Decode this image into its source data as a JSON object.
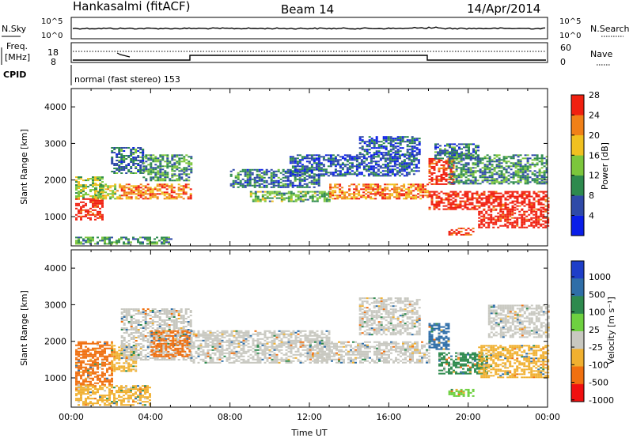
{
  "header": {
    "station": "Hankasalmi (fitACF)",
    "beam": "Beam 14",
    "date": "14/Apr/2014"
  },
  "top_panels": {
    "nsky_label": "N.Sky",
    "nsky_ticks": [
      "10^5",
      "10^0"
    ],
    "nsearch_label": "N.Search",
    "nsearch_ticks": [
      "10^5",
      "10^0"
    ],
    "freq_label_1": "Freq.",
    "freq_label_2": "[MHz]",
    "freq_ticks": [
      "18",
      "8"
    ],
    "nave_label": "Nave",
    "nave_ticks": [
      "60",
      "0"
    ],
    "cpid_label": "CPID",
    "cpid_text": "normal (fast stereo) 153"
  },
  "chart_data": [
    {
      "type": "heatmap",
      "title": "",
      "xlabel": "",
      "ylabel": "Slant Range [km]",
      "xlim": [
        0,
        24
      ],
      "ylim": [
        200,
        4500
      ],
      "yticks": [
        1000,
        2000,
        3000,
        4000
      ],
      "colorbar": {
        "label": "Power [dB]",
        "ticks": [
          "4",
          "8",
          "12",
          "16",
          "20",
          "24",
          "28"
        ],
        "colors": [
          "#0a1ee8",
          "#2f4aa8",
          "#2e8a4e",
          "#7cc63c",
          "#f0c020",
          "#f08018",
          "#f02010"
        ]
      },
      "regions": [
        {
          "t0": 0.2,
          "t1": 1.6,
          "r0": 900,
          "r1": 1500,
          "level": 28
        },
        {
          "t0": 0.2,
          "t1": 1.6,
          "r0": 1500,
          "r1": 2100,
          "level": 14
        },
        {
          "t0": 1.2,
          "t1": 2.5,
          "r0": 1500,
          "r1": 1900,
          "level": 16
        },
        {
          "t0": 2.5,
          "t1": 6.0,
          "r0": 1500,
          "r1": 1900,
          "level": 22
        },
        {
          "t0": 2.0,
          "t1": 3.6,
          "r0": 2200,
          "r1": 2900,
          "level": 8
        },
        {
          "t0": 3.6,
          "t1": 6.0,
          "r0": 2000,
          "r1": 2700,
          "level": 10
        },
        {
          "t0": 0.2,
          "t1": 5.0,
          "r0": 250,
          "r1": 450,
          "level": 10
        },
        {
          "t0": 8.0,
          "t1": 12.5,
          "r0": 1800,
          "r1": 2300,
          "level": 8
        },
        {
          "t0": 9.0,
          "t1": 13.0,
          "r0": 1400,
          "r1": 1700,
          "level": 12
        },
        {
          "t0": 13.0,
          "t1": 18.0,
          "r0": 1500,
          "r1": 1900,
          "level": 22
        },
        {
          "t0": 11.0,
          "t1": 17.5,
          "r0": 2100,
          "r1": 2700,
          "level": 6
        },
        {
          "t0": 14.5,
          "t1": 17.5,
          "r0": 2700,
          "r1": 3200,
          "level": 6
        },
        {
          "t0": 18.0,
          "t1": 19.2,
          "r0": 1900,
          "r1": 2600,
          "level": 26
        },
        {
          "t0": 18.0,
          "t1": 24.0,
          "r0": 1200,
          "r1": 1700,
          "level": 28
        },
        {
          "t0": 20.5,
          "t1": 24.0,
          "r0": 700,
          "r1": 1200,
          "level": 28
        },
        {
          "t0": 19.0,
          "t1": 24.0,
          "r0": 1900,
          "r1": 2700,
          "level": 10
        },
        {
          "t0": 18.3,
          "t1": 20.5,
          "r0": 2600,
          "r1": 3000,
          "level": 8
        },
        {
          "t0": 19.0,
          "t1": 20.2,
          "r0": 500,
          "r1": 700,
          "level": 26
        }
      ]
    },
    {
      "type": "heatmap",
      "title": "",
      "xlabel": "Time UT",
      "ylabel": "Slant Range [km]",
      "xlim": [
        0,
        24
      ],
      "xticks": [
        "00:00",
        "04:00",
        "08:00",
        "12:00",
        "16:00",
        "20:00",
        "00:00"
      ],
      "ylim": [
        200,
        4500
      ],
      "yticks": [
        1000,
        2000,
        3000,
        4000
      ],
      "colorbar": {
        "label": "Velocity [m s⁻¹]",
        "ticks": [
          "1000",
          "500",
          "100",
          "25",
          "-25",
          "-100",
          "-500",
          "-1000"
        ],
        "colors": [
          "#1e3ec8",
          "#2f6ea8",
          "#2e8a4e",
          "#6ed040",
          "#c8c8c0",
          "#f0b030",
          "#f07010",
          "#f01010"
        ]
      },
      "regions": [
        {
          "t0": 0.2,
          "t1": 2.0,
          "r0": 800,
          "r1": 2000,
          "level": -500
        },
        {
          "t0": 2.0,
          "t1": 3.2,
          "r0": 1200,
          "r1": 1900,
          "level": -100
        },
        {
          "t0": 2.5,
          "t1": 6.0,
          "r0": 1500,
          "r1": 2900,
          "level": 0
        },
        {
          "t0": 4.0,
          "t1": 6.0,
          "r0": 1600,
          "r1": 2300,
          "level": -500
        },
        {
          "t0": 0.2,
          "t1": 4.0,
          "r0": 250,
          "r1": 800,
          "level": -100
        },
        {
          "t0": 6.0,
          "t1": 13.0,
          "r0": 1400,
          "r1": 2300,
          "level": 0
        },
        {
          "t0": 12.0,
          "t1": 18.0,
          "r0": 1400,
          "r1": 2000,
          "level": 0
        },
        {
          "t0": 14.5,
          "t1": 17.5,
          "r0": 2200,
          "r1": 3200,
          "level": 0
        },
        {
          "t0": 18.0,
          "t1": 19.0,
          "r0": 1800,
          "r1": 2500,
          "level": 500
        },
        {
          "t0": 18.5,
          "t1": 21.0,
          "r0": 1100,
          "r1": 1700,
          "level": 100
        },
        {
          "t0": 20.5,
          "t1": 24.0,
          "r0": 1000,
          "r1": 1900,
          "level": -100
        },
        {
          "t0": 21.0,
          "t1": 24.0,
          "r0": 2100,
          "r1": 3000,
          "level": 0
        },
        {
          "t0": 19.0,
          "t1": 20.2,
          "r0": 500,
          "r1": 700,
          "level": 25
        }
      ]
    }
  ],
  "colors": {
    "white": "#ffffff",
    "line": "#000000"
  }
}
